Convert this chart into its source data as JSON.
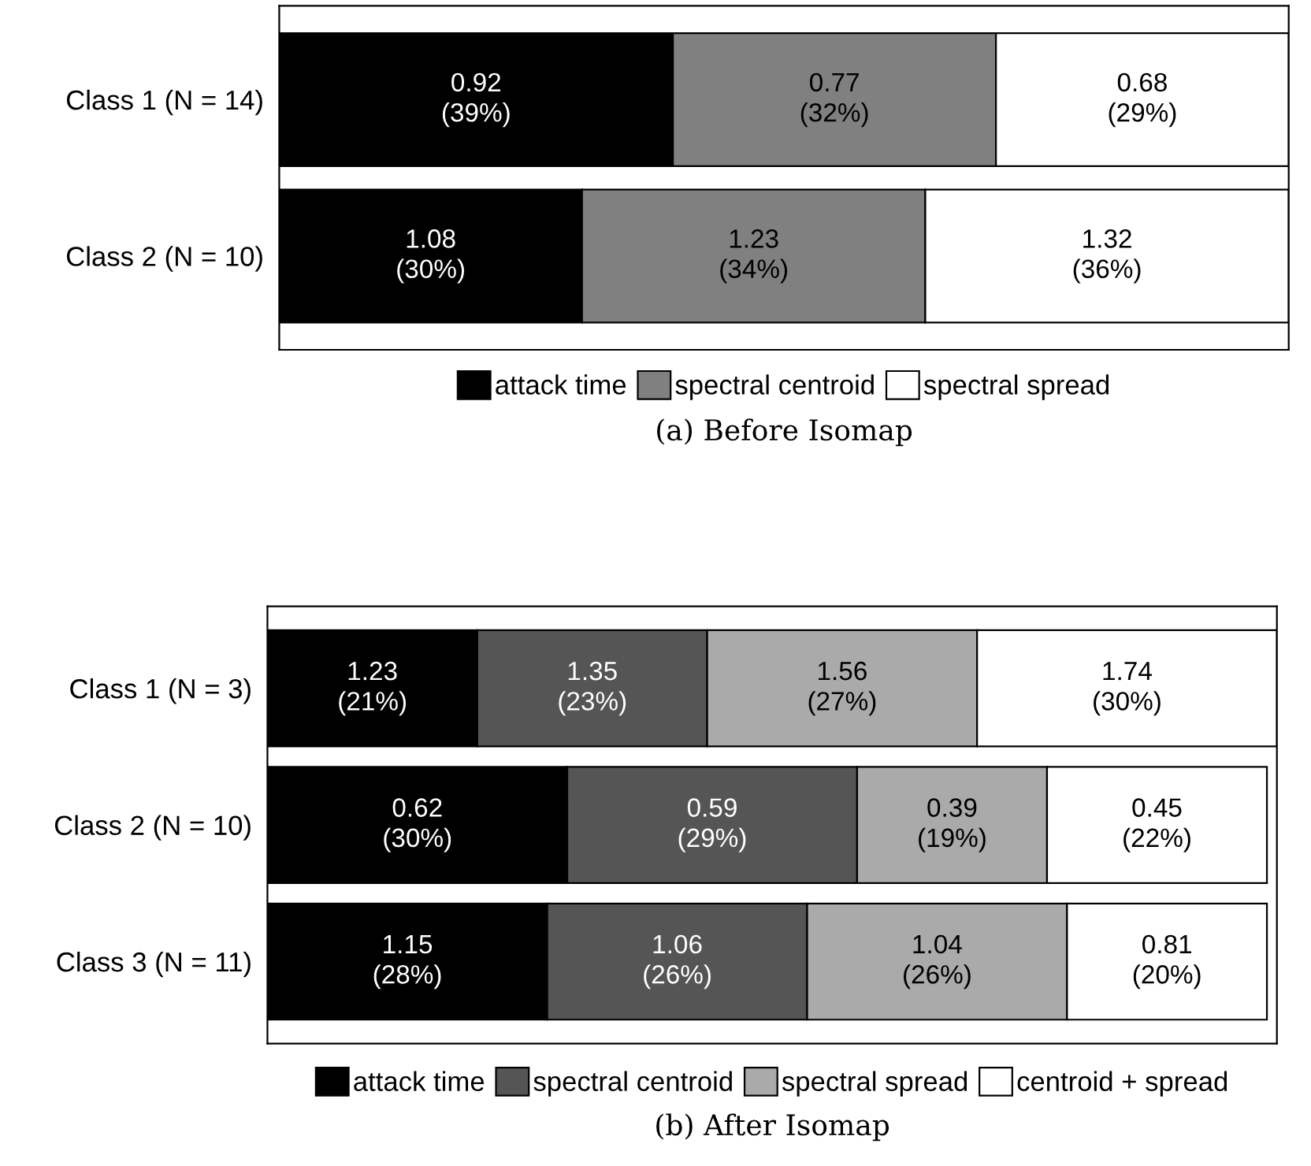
{
  "chart_data": [
    {
      "type": "bar",
      "orientation": "horizontal",
      "stacked": true,
      "title": "(a) Before Isomap",
      "categories": [
        "Class 1 (N = 14)",
        "Class 2 (N = 10)"
      ],
      "xlim": [
        0,
        100
      ],
      "tick_labels": "y",
      "legend": "bottom",
      "grid": false,
      "series": [
        {
          "name": "attack time",
          "color": "#000000",
          "values": [
            39,
            30
          ],
          "value_labels": [
            "0.92\n(39%)",
            "1.08\n(30%)"
          ]
        },
        {
          "name": "spectral centroid",
          "color": "#808080",
          "values": [
            32,
            34
          ],
          "value_labels": [
            "0.77\n(32%)",
            "1.23\n(34%)"
          ]
        },
        {
          "name": "spectral spread",
          "color": "#ffffff",
          "values": [
            29,
            36
          ],
          "value_labels": [
            "0.68\n(29%)",
            "1.32\n(36%)"
          ]
        }
      ]
    },
    {
      "type": "bar",
      "orientation": "horizontal",
      "stacked": true,
      "title": "(b) After Isomap",
      "categories": [
        "Class 1 (N = 3)",
        "Class 2 (N = 10)",
        "Class 3 (N = 11)"
      ],
      "xlim": [
        0,
        101
      ],
      "tick_labels": "y",
      "legend": "bottom",
      "grid": false,
      "series": [
        {
          "name": "attack time",
          "color": "#000000",
          "values": [
            21,
            30,
            28
          ],
          "value_labels": [
            "1.23\n(21%)",
            "0.62\n(30%)",
            "1.15\n(28%)"
          ]
        },
        {
          "name": "spectral centroid",
          "color": "#555555",
          "values": [
            23,
            29,
            26
          ],
          "value_labels": [
            "1.35\n(23%)",
            "0.59\n(29%)",
            "1.06\n(26%)"
          ]
        },
        {
          "name": "spectral spread",
          "color": "#aaaaaa",
          "values": [
            27,
            19,
            26
          ],
          "value_labels": [
            "1.56\n(27%)",
            "0.39\n(19%)",
            "1.04\n(26%)"
          ]
        },
        {
          "name": "centroid + spread",
          "color": "#ffffff",
          "values": [
            30,
            22,
            20
          ],
          "value_labels": [
            "1.74\n(30%)",
            "0.45\n(22%)",
            "0.81\n(20%)"
          ]
        }
      ]
    }
  ]
}
